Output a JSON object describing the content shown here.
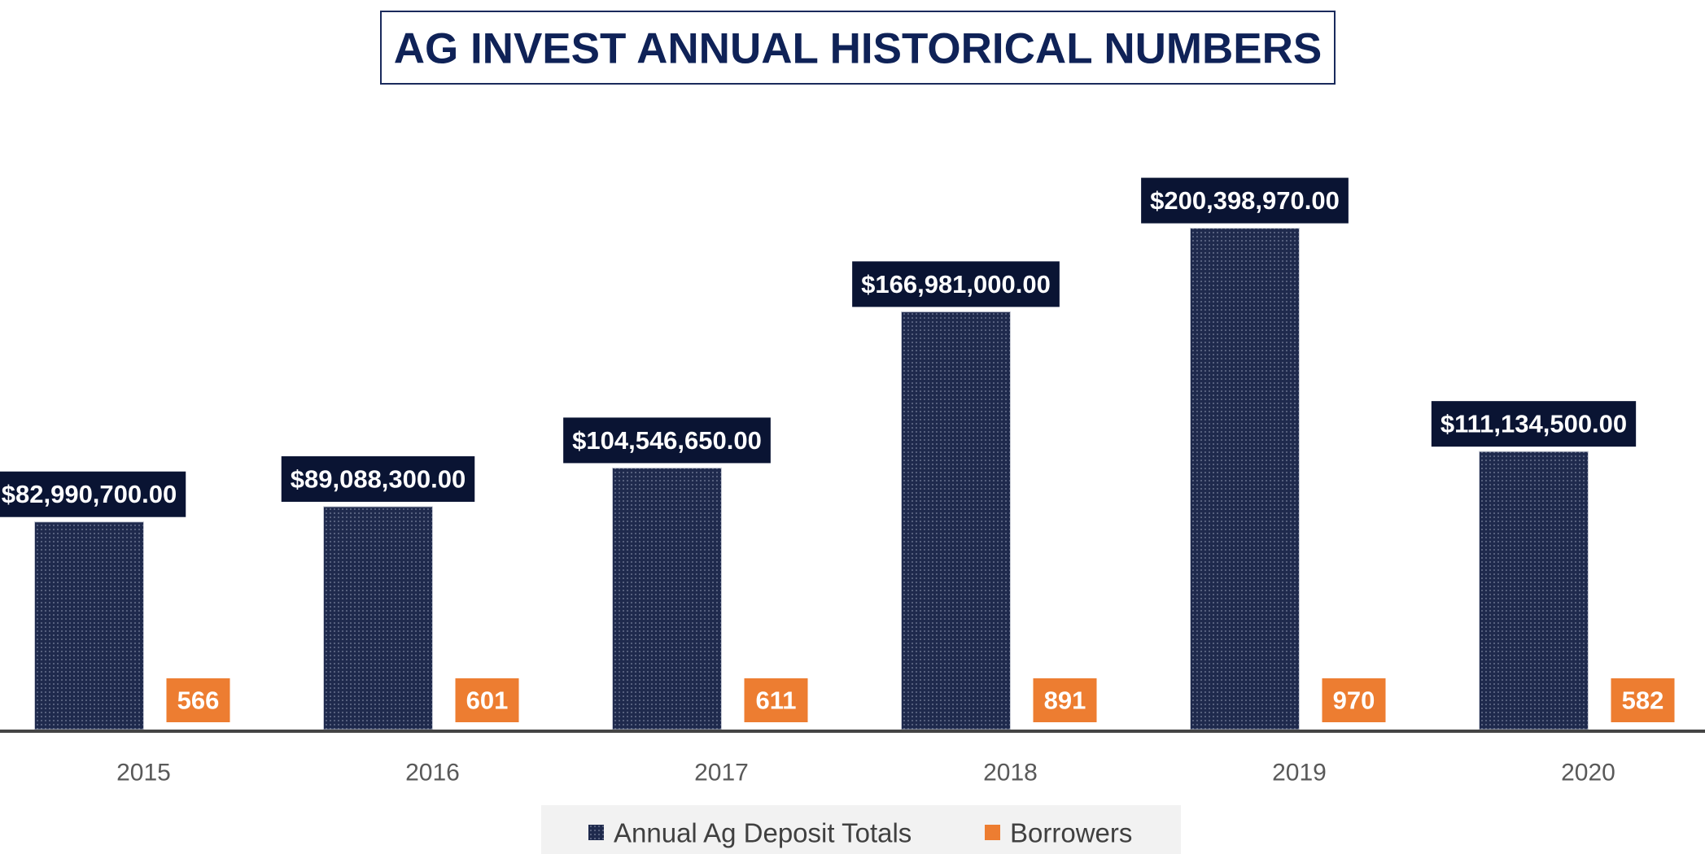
{
  "chart_data": {
    "type": "bar",
    "title": "AG INVEST ANNUAL HISTORICAL NUMBERS",
    "categories": [
      "2015",
      "2016",
      "2017",
      "2018",
      "2019",
      "2020"
    ],
    "series": [
      {
        "name": "Annual Ag Deposit Totals",
        "color": "#1f2a4d",
        "values": [
          82990700,
          89088300,
          104546650,
          166981000,
          200398970,
          111134500
        ],
        "value_labels": [
          "$82,990,700.00",
          "$89,088,300.00",
          "$104,546,650.00",
          "$166,981,000.00",
          "$200,398,970.00",
          "$111,134,500.00"
        ]
      },
      {
        "name": "Borrowers",
        "color": "#ed7d31",
        "values": [
          566,
          601,
          611,
          891,
          970,
          582
        ]
      }
    ],
    "ylim": [
      0,
      250000000
    ]
  }
}
